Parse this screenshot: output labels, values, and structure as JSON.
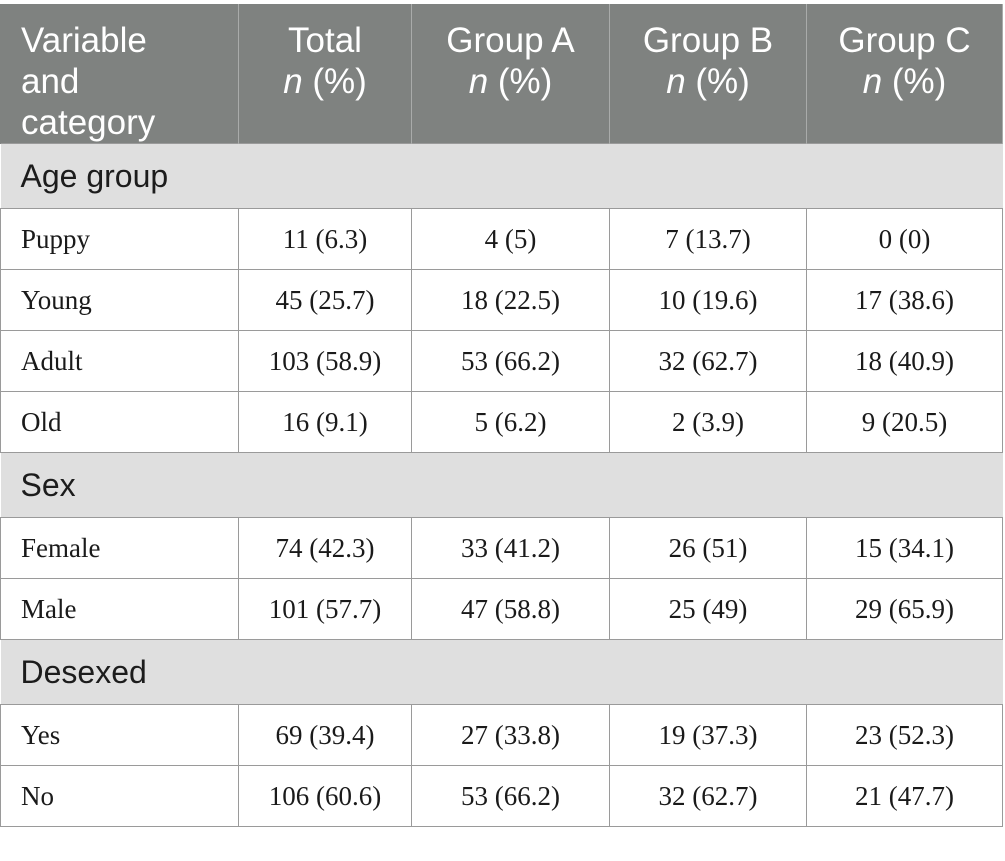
{
  "table": {
    "headers": [
      {
        "line1": "Variable",
        "line2": "and",
        "line3": "category"
      },
      {
        "line1": "Total",
        "n": "n",
        "pct": " (%)"
      },
      {
        "line1": "Group A",
        "n": "n",
        "pct": " (%)"
      },
      {
        "line1": "Group B",
        "n": "n",
        "pct": " (%)"
      },
      {
        "line1": "Group C",
        "n": "n",
        "pct": " (%)"
      }
    ],
    "sections": [
      {
        "title": "Age group",
        "rows": [
          [
            "Puppy",
            "11 (6.3)",
            "4 (5)",
            "7 (13.7)",
            "0 (0)"
          ],
          [
            "Young",
            "45 (25.7)",
            "18 (22.5)",
            "10 (19.6)",
            "17 (38.6)"
          ],
          [
            "Adult",
            "103 (58.9)",
            "53 (66.2)",
            "32 (62.7)",
            "18 (40.9)"
          ],
          [
            "Old",
            "16 (9.1)",
            "5 (6.2)",
            "2 (3.9)",
            "9 (20.5)"
          ]
        ]
      },
      {
        "title": "Sex",
        "rows": [
          [
            "Female",
            "74 (42.3)",
            "33 (41.2)",
            "26 (51)",
            "15 (34.1)"
          ],
          [
            "Male",
            "101 (57.7)",
            "47 (58.8)",
            "25 (49)",
            "29 (65.9)"
          ]
        ]
      },
      {
        "title": "Desexed",
        "rows": [
          [
            "Yes",
            "69 (39.4)",
            "27 (33.8)",
            "19 (37.3)",
            "23 (52.3)"
          ],
          [
            "No",
            "106 (60.6)",
            "53 (66.2)",
            "32 (62.7)",
            "21 (47.7)"
          ]
        ]
      }
    ]
  }
}
